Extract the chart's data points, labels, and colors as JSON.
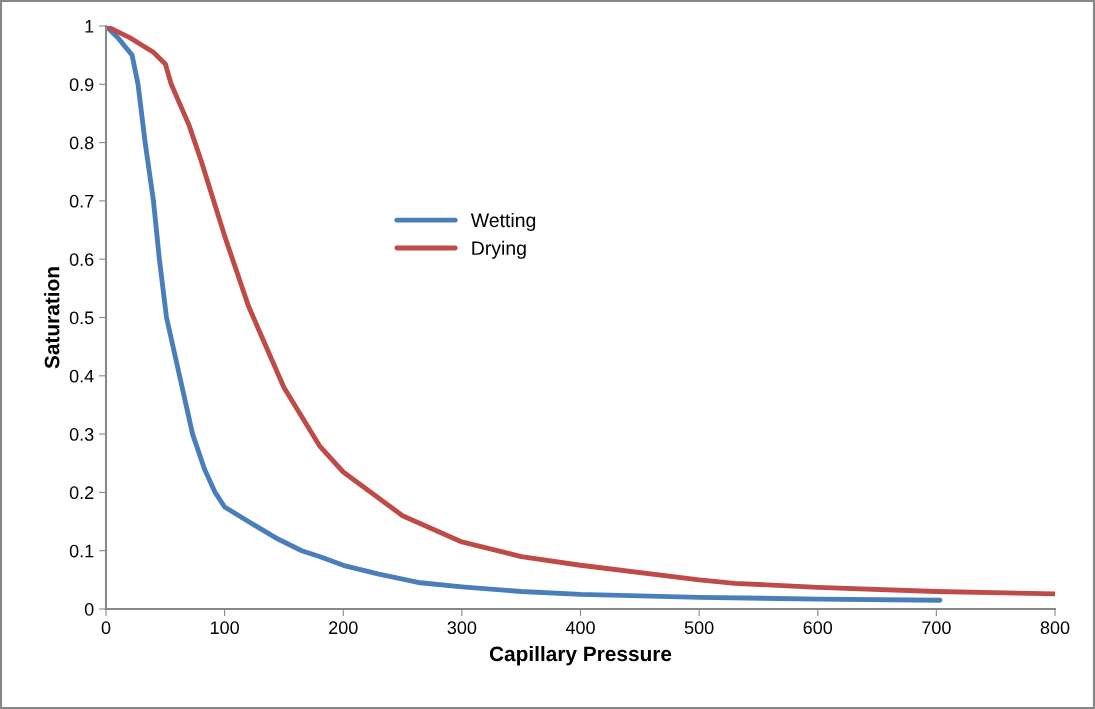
{
  "chart_data": {
    "type": "line",
    "xlabel": "Capillary Pressure",
    "ylabel": "Saturation",
    "xlim": [
      0,
      800
    ],
    "xticks": [
      0,
      100,
      200,
      300,
      400,
      500,
      600,
      700,
      800
    ],
    "ylim": [
      0,
      1
    ],
    "yticks": [
      0,
      0.1,
      0.2,
      0.3,
      0.4,
      0.5,
      0.6,
      0.7,
      0.8,
      0.9,
      1
    ],
    "grid": false,
    "legend": "center",
    "marker": "none",
    "line_style": "solid",
    "series": [
      {
        "name": "Wetting",
        "color": "#4a7ebb",
        "x": [
          0,
          10,
          22,
          27,
          33,
          40,
          45,
          51,
          62,
          73,
          83,
          92,
          100,
          120,
          145,
          165,
          180,
          200,
          230,
          265,
          300,
          350,
          400,
          500,
          600,
          703
        ],
        "values": [
          1,
          0.98,
          0.95,
          0.9,
          0.8,
          0.7,
          0.6,
          0.5,
          0.4,
          0.3,
          0.24,
          0.2,
          0.175,
          0.15,
          0.12,
          0.1,
          0.09,
          0.075,
          0.06,
          0.045,
          0.038,
          0.03,
          0.025,
          0.02,
          0.017,
          0.015
        ]
      },
      {
        "name": "Drying",
        "color": "#be4b48",
        "x": [
          0,
          20,
          40,
          50,
          55,
          70,
          80,
          100,
          120,
          150,
          180,
          200,
          250,
          300,
          350,
          400,
          500,
          530,
          600,
          700,
          800
        ],
        "values": [
          1,
          0.98,
          0.955,
          0.935,
          0.9,
          0.83,
          0.77,
          0.64,
          0.52,
          0.38,
          0.28,
          0.235,
          0.16,
          0.115,
          0.09,
          0.075,
          0.05,
          0.044,
          0.037,
          0.03,
          0.026
        ]
      }
    ]
  }
}
